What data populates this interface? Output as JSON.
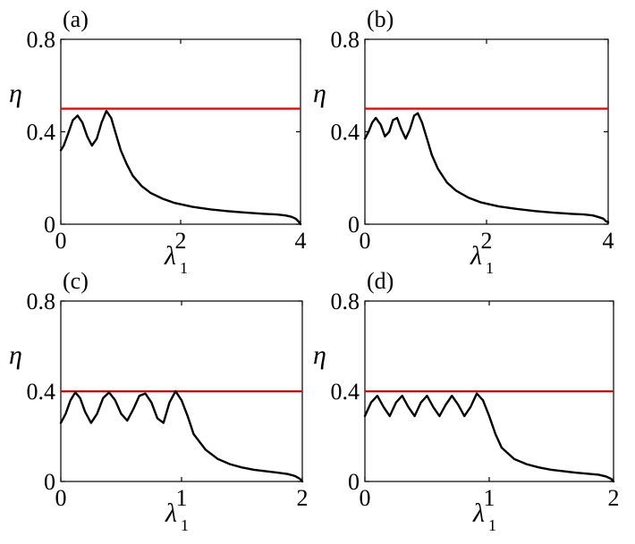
{
  "colors": {
    "curve": "#000000",
    "reference_line": "#e60000",
    "axes": "#000000"
  },
  "chart_data": [
    {
      "type": "line",
      "panel_label": "(a)",
      "xlabel": "λ",
      "xlabel_sub": "1",
      "ylabel": "η",
      "xlim": [
        0,
        4
      ],
      "ylim": [
        0,
        0.8
      ],
      "xticks": [
        0,
        2,
        4
      ],
      "xtick_labels": [
        "0",
        "2",
        "4"
      ],
      "yticks": [
        0,
        0.4,
        0.8
      ],
      "ytick_labels": [
        "0",
        "0.4",
        "0.8"
      ],
      "grid": false,
      "reference_line": {
        "y": 0.5
      },
      "series": [
        {
          "x": [
            0,
            0.05,
            0.12,
            0.2,
            0.28,
            0.36,
            0.44,
            0.52,
            0.6,
            0.68,
            0.76,
            0.84,
            0.92,
            1.0,
            1.1,
            1.2,
            1.35,
            1.5,
            1.7,
            1.9,
            2.2,
            2.5,
            2.8,
            3.1,
            3.4,
            3.6,
            3.75,
            3.85,
            3.92,
            3.96,
            4.0
          ],
          "y": [
            0.32,
            0.34,
            0.39,
            0.45,
            0.47,
            0.44,
            0.38,
            0.34,
            0.37,
            0.44,
            0.49,
            0.46,
            0.39,
            0.32,
            0.26,
            0.21,
            0.165,
            0.135,
            0.11,
            0.092,
            0.075,
            0.064,
            0.056,
            0.05,
            0.045,
            0.042,
            0.038,
            0.032,
            0.024,
            0.014,
            0.0
          ]
        }
      ]
    },
    {
      "type": "line",
      "panel_label": "(b)",
      "xlabel": "λ",
      "xlabel_sub": "1",
      "ylabel": "η",
      "xlim": [
        0,
        4
      ],
      "ylim": [
        0,
        0.8
      ],
      "xticks": [
        0,
        2,
        4
      ],
      "xtick_labels": [
        "0",
        "2",
        "4"
      ],
      "yticks": [
        0,
        0.4,
        0.8
      ],
      "ytick_labels": [
        "0",
        "0.4",
        "0.8"
      ],
      "grid": false,
      "reference_line": {
        "y": 0.5
      },
      "series": [
        {
          "x": [
            0,
            0.06,
            0.12,
            0.18,
            0.26,
            0.33,
            0.4,
            0.46,
            0.53,
            0.6,
            0.67,
            0.74,
            0.81,
            0.87,
            0.94,
            1.02,
            1.1,
            1.2,
            1.35,
            1.5,
            1.7,
            1.9,
            2.2,
            2.5,
            2.8,
            3.1,
            3.4,
            3.6,
            3.75,
            3.85,
            3.92,
            3.96,
            4.0
          ],
          "y": [
            0.37,
            0.4,
            0.44,
            0.46,
            0.43,
            0.38,
            0.4,
            0.45,
            0.46,
            0.41,
            0.37,
            0.41,
            0.47,
            0.48,
            0.44,
            0.37,
            0.3,
            0.24,
            0.18,
            0.145,
            0.115,
            0.095,
            0.077,
            0.066,
            0.057,
            0.05,
            0.045,
            0.042,
            0.038,
            0.03,
            0.024,
            0.014,
            0.008
          ]
        }
      ]
    },
    {
      "type": "line",
      "panel_label": "(c)",
      "xlabel": "λ",
      "xlabel_sub": "1",
      "ylabel": "η",
      "xlim": [
        0,
        2
      ],
      "ylim": [
        0,
        0.8
      ],
      "xticks": [
        0,
        1,
        2
      ],
      "xtick_labels": [
        "0",
        "1",
        "2"
      ],
      "yticks": [
        0,
        0.4,
        0.8
      ],
      "ytick_labels": [
        "0",
        "0.4",
        "0.8"
      ],
      "grid": false,
      "reference_line": {
        "y": 0.4
      },
      "series": [
        {
          "x": [
            0,
            0.04,
            0.08,
            0.12,
            0.16,
            0.2,
            0.25,
            0.3,
            0.35,
            0.4,
            0.45,
            0.5,
            0.55,
            0.6,
            0.65,
            0.7,
            0.75,
            0.8,
            0.85,
            0.9,
            0.95,
            1.0,
            1.05,
            1.1,
            1.2,
            1.3,
            1.4,
            1.5,
            1.6,
            1.7,
            1.8,
            1.88,
            1.94,
            1.98,
            2.0
          ],
          "y": [
            0.26,
            0.3,
            0.36,
            0.395,
            0.37,
            0.31,
            0.26,
            0.3,
            0.37,
            0.395,
            0.36,
            0.3,
            0.27,
            0.32,
            0.38,
            0.39,
            0.35,
            0.28,
            0.26,
            0.35,
            0.4,
            0.36,
            0.29,
            0.21,
            0.14,
            0.1,
            0.077,
            0.062,
            0.052,
            0.045,
            0.039,
            0.033,
            0.024,
            0.012,
            0.0
          ]
        }
      ]
    },
    {
      "type": "line",
      "panel_label": "(d)",
      "xlabel": "λ",
      "xlabel_sub": "1",
      "ylabel": "η",
      "xlim": [
        0,
        2
      ],
      "ylim": [
        0,
        0.8
      ],
      "xticks": [
        0,
        1,
        2
      ],
      "xtick_labels": [
        "0",
        "1",
        "2"
      ],
      "yticks": [
        0,
        0.4,
        0.8
      ],
      "ytick_labels": [
        "0",
        "0.4",
        "0.8"
      ],
      "grid": false,
      "reference_line": {
        "y": 0.4
      },
      "series": [
        {
          "x": [
            0,
            0.05,
            0.1,
            0.15,
            0.2,
            0.25,
            0.3,
            0.35,
            0.4,
            0.45,
            0.5,
            0.55,
            0.6,
            0.65,
            0.7,
            0.75,
            0.8,
            0.85,
            0.9,
            0.95,
            1.0,
            1.05,
            1.1,
            1.2,
            1.3,
            1.4,
            1.5,
            1.6,
            1.7,
            1.8,
            1.88,
            1.94,
            1.98,
            2.0
          ],
          "y": [
            0.29,
            0.35,
            0.38,
            0.33,
            0.29,
            0.35,
            0.38,
            0.33,
            0.29,
            0.35,
            0.38,
            0.33,
            0.29,
            0.34,
            0.38,
            0.34,
            0.29,
            0.33,
            0.39,
            0.36,
            0.29,
            0.21,
            0.15,
            0.1,
            0.077,
            0.062,
            0.052,
            0.045,
            0.039,
            0.034,
            0.03,
            0.022,
            0.012,
            0.0
          ]
        }
      ]
    }
  ]
}
